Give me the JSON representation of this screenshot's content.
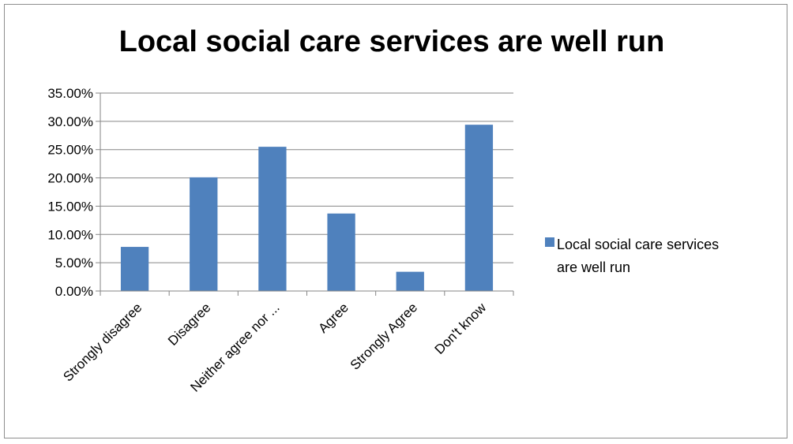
{
  "chart_data": {
    "type": "bar",
    "title": "Local social care services are well run",
    "categories": [
      "Strongly disagree",
      "Disagree",
      "Neither agree nor ...",
      "Agree",
      "Strongly Agree",
      "Don't know"
    ],
    "series": [
      {
        "name": "Local social care services are well run",
        "values": [
          7.8,
          20.1,
          25.5,
          13.7,
          3.4,
          29.4
        ],
        "color": "#4f81bd"
      }
    ],
    "y_ticks": [
      "0.00%",
      "5.00%",
      "10.00%",
      "15.00%",
      "20.00%",
      "25.00%",
      "30.00%",
      "35.00%"
    ],
    "ylim": [
      0,
      35
    ],
    "grid": true,
    "legend_position": "right",
    "legend_lines": [
      "Local social care services",
      "are well run"
    ]
  }
}
